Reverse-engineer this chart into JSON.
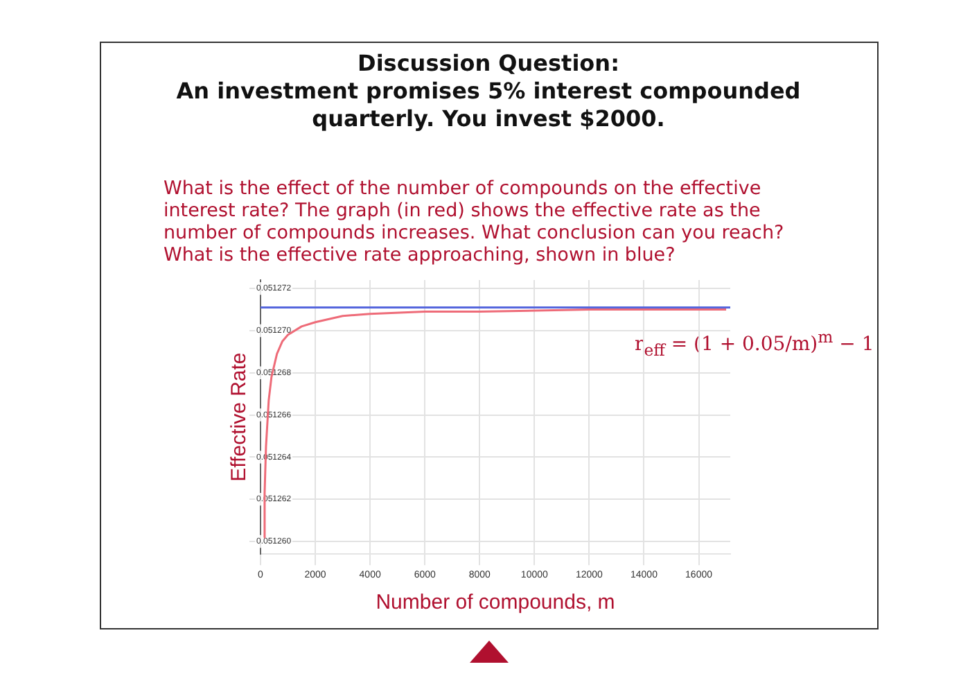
{
  "chart_data": {
    "type": "line",
    "title": "Discussion Question:\nAn investment promises 5% interest compounded quarterly.  You invest $2000.",
    "subtitle": "What is the effect of the number of compounds on the effective interest rate?  The graph (in red) shows the effective rate as the number of compounds increases.  What conclusion can you reach?  What is the effective rate approaching, shown in blue?",
    "xlabel": "Number of compounds, m",
    "ylabel": "Effective Rate",
    "x": [
      120,
      150,
      200,
      300,
      400,
      600,
      800,
      1000,
      1500,
      2000,
      3000,
      4000,
      6000,
      8000,
      12000,
      17000
    ],
    "series": [
      {
        "color": "#ee6b78",
        "values": [
          0.0512602,
          0.0512623,
          0.0512645,
          0.0512667,
          0.0512678,
          0.0512689,
          0.0512695,
          0.0512698,
          0.0512702,
          0.0512704,
          0.0512707,
          0.0512708,
          0.0512709,
          0.0512709,
          0.051271,
          0.051271
        ]
      }
    ],
    "ref_lines": [
      {
        "axis": "y",
        "value": 0.0512711,
        "color": "#5566dd"
      }
    ],
    "xlim": [
      0,
      17150
    ],
    "xticks": [
      0,
      2000,
      4000,
      6000,
      8000,
      10000,
      12000,
      14000,
      16000
    ],
    "ylim": [
      0.0512594,
      0.0512724
    ],
    "yticks": [
      {
        "value": 0.05126,
        "label": "0.051260"
      },
      0.051262,
      0.051264,
      0.051266,
      0.051268,
      {
        "value": 0.05127,
        "label": "0.051270"
      },
      0.051272
    ],
    "grid": true,
    "legend": false,
    "marker": "none",
    "annotations": [
      "r$_{eff}$ = (1 + 0.05/m)$^{m}$ − 1"
    ]
  }
}
